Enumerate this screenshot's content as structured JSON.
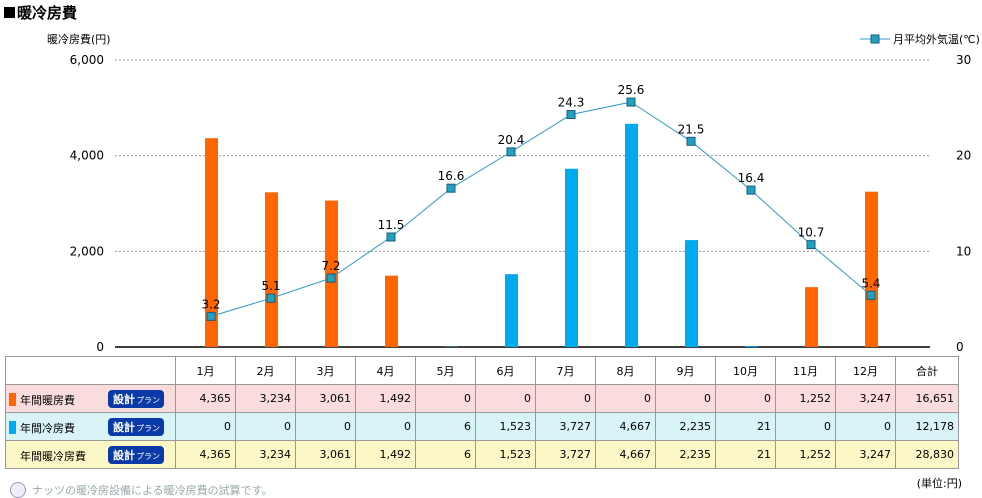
{
  "title": "暖冷房費",
  "chart_data": {
    "type": "bar+line",
    "categories": [
      "1月",
      "2月",
      "3月",
      "4月",
      "5月",
      "6月",
      "7月",
      "8月",
      "9月",
      "10月",
      "11月",
      "12月"
    ],
    "y_left_label": "暖冷房費(円)",
    "y_left_ticks": [
      "0",
      "2,000",
      "4,000",
      "6,000"
    ],
    "y_left_range": [
      0,
      6000
    ],
    "y_right_ticks": [
      "0",
      "10",
      "20",
      "30"
    ],
    "y_right_range": [
      0,
      30
    ],
    "grid": true,
    "series": [
      {
        "kind": "bar",
        "color": "#ff6600",
        "values": [
          4365,
          3234,
          3061,
          1492,
          0,
          0,
          0,
          0,
          0,
          0,
          1252,
          3247
        ]
      },
      {
        "kind": "bar",
        "color": "#00aaf0",
        "values": [
          0,
          0,
          0,
          0,
          6,
          1523,
          3727,
          4667,
          2235,
          21,
          0,
          0
        ]
      },
      {
        "kind": "line",
        "name": "月平均外気温(℃)",
        "color": "#3399cc",
        "axis": "right",
        "values": [
          3.2,
          5.1,
          7.2,
          11.5,
          16.6,
          20.4,
          24.3,
          25.6,
          21.5,
          16.4,
          10.7,
          5.4
        ],
        "labels": [
          "3.2",
          "5.1",
          "7.2",
          "11.5",
          "16.6",
          "20.4",
          "24.3",
          "25.6",
          "21.5",
          "16.4",
          "10.7",
          "5.4"
        ]
      }
    ],
    "legend_position": "top-right"
  },
  "table": {
    "headers": [
      "1月",
      "2月",
      "3月",
      "4月",
      "5月",
      "6月",
      "7月",
      "8月",
      "9月",
      "10月",
      "11月",
      "12月",
      "合計"
    ],
    "plan_label": "設計",
    "plan_suffix": "プラン",
    "rows": [
      {
        "label": "年間暖房費",
        "marker": "o",
        "cls": "heat",
        "values": [
          "4,365",
          "3,234",
          "3,061",
          "1,492",
          "0",
          "0",
          "0",
          "0",
          "0",
          "0",
          "1,252",
          "3,247",
          "16,651"
        ]
      },
      {
        "label": "年間冷房費",
        "marker": "b",
        "cls": "cool",
        "values": [
          "0",
          "0",
          "0",
          "0",
          "6",
          "1,523",
          "3,727",
          "4,667",
          "2,235",
          "21",
          "0",
          "0",
          "12,178"
        ]
      },
      {
        "label": "年間暖冷房費",
        "marker": "",
        "cls": "total",
        "values": [
          "4,365",
          "3,234",
          "3,061",
          "1,492",
          "6",
          "1,523",
          "3,727",
          "4,667",
          "2,235",
          "21",
          "1,252",
          "3,247",
          "28,830"
        ]
      }
    ]
  },
  "unit": "(単位:円)",
  "footnote": "ナッツの暖冷房設備による暖冷房費の試算です。"
}
